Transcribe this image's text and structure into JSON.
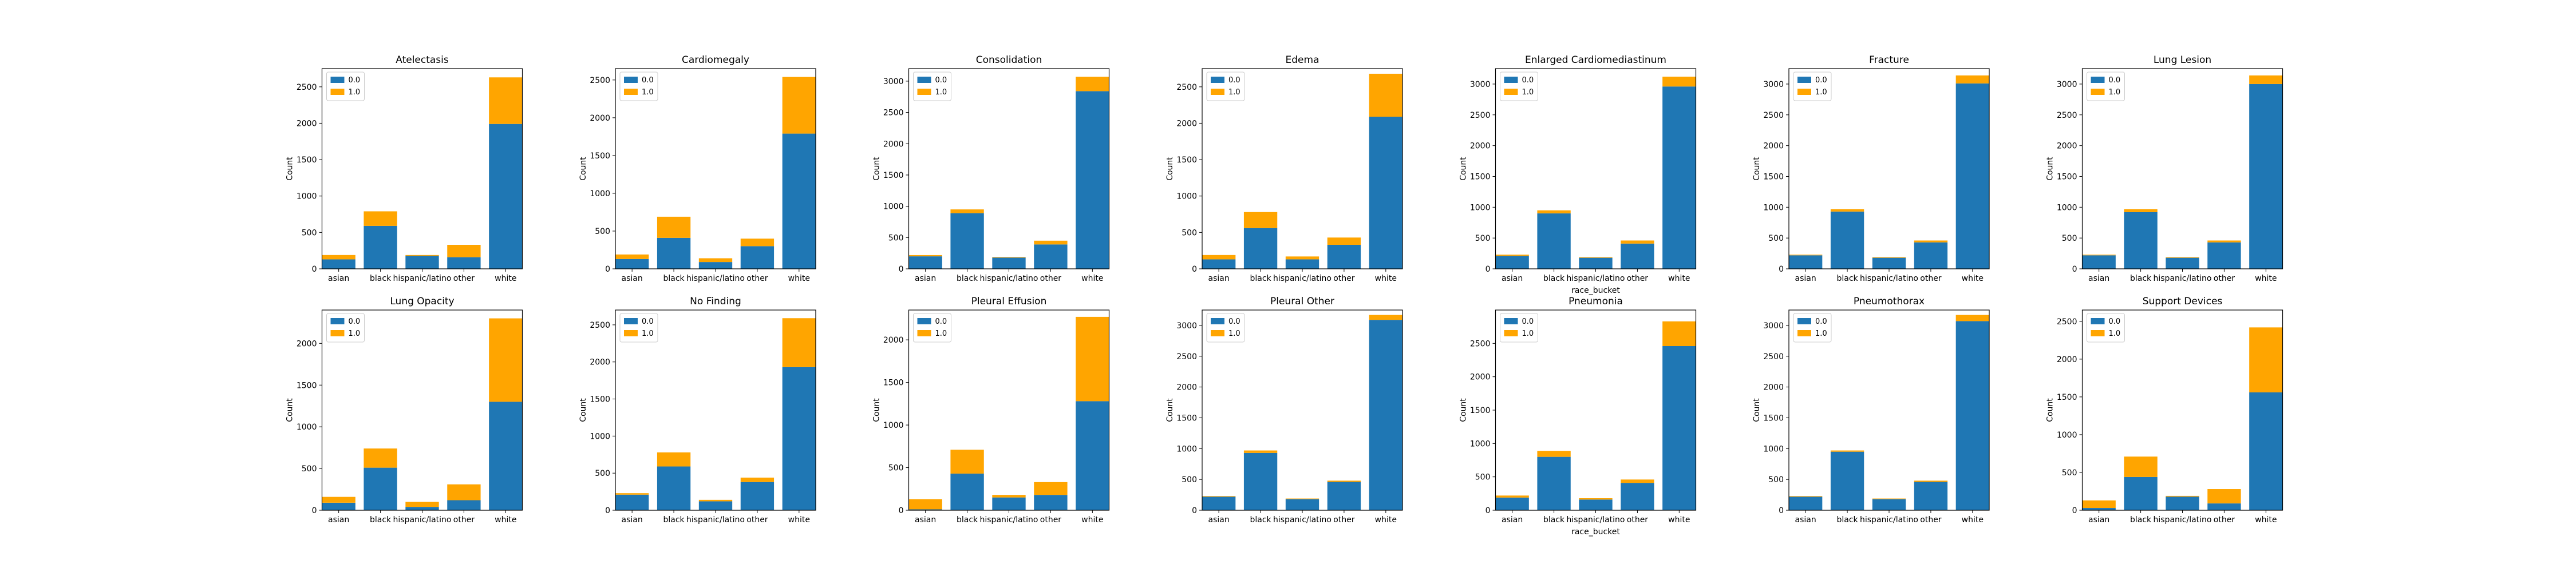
{
  "figure": {
    "colors": {
      "0.0": "#1f77b4",
      "1.0": "#ffa500"
    }
  },
  "chart_data": [
    {
      "type": "bar",
      "stacked": true,
      "title": "Atelectasis",
      "xlabel": "",
      "ylabel": "Count",
      "ylim": [
        0,
        2750
      ],
      "yticks": [
        0,
        500,
        1000,
        1500,
        2000,
        2500
      ],
      "categories": [
        "asian",
        "black",
        "hispanic/latino",
        "other",
        "white"
      ],
      "series": [
        {
          "name": "0.0",
          "values": [
            130,
            590,
            180,
            160,
            1990
          ]
        },
        {
          "name": "1.0",
          "values": [
            60,
            200,
            10,
            170,
            640
          ]
        }
      ],
      "legend": {
        "position": "top-left",
        "entries": [
          "0.0",
          "1.0"
        ]
      },
      "grid": false
    },
    {
      "type": "bar",
      "stacked": true,
      "title": "Cardiomegaly",
      "xlabel": "",
      "ylabel": "Count",
      "ylim": [
        0,
        2650
      ],
      "yticks": [
        0,
        500,
        1000,
        1500,
        2000,
        2500
      ],
      "categories": [
        "asian",
        "black",
        "hispanic/latino",
        "other",
        "white"
      ],
      "series": [
        {
          "name": "0.0",
          "values": [
            130,
            410,
            90,
            300,
            1790
          ]
        },
        {
          "name": "1.0",
          "values": [
            60,
            280,
            50,
            100,
            750
          ]
        }
      ],
      "legend": {
        "position": "top-left",
        "entries": [
          "0.0",
          "1.0"
        ]
      },
      "grid": false
    },
    {
      "type": "bar",
      "stacked": true,
      "title": "Consolidation",
      "xlabel": "",
      "ylabel": "Count",
      "ylim": [
        0,
        3200
      ],
      "yticks": [
        0,
        500,
        1000,
        1500,
        2000,
        2500,
        3000
      ],
      "categories": [
        "asian",
        "black",
        "hispanic/latino",
        "other",
        "white"
      ],
      "series": [
        {
          "name": "0.0",
          "values": [
            200,
            890,
            180,
            390,
            2840
          ]
        },
        {
          "name": "1.0",
          "values": [
            20,
            60,
            10,
            60,
            230
          ]
        }
      ],
      "legend": {
        "position": "top-left",
        "entries": [
          "0.0",
          "1.0"
        ]
      },
      "grid": false
    },
    {
      "type": "bar",
      "stacked": true,
      "title": "Edema",
      "xlabel": "",
      "ylabel": "Count",
      "ylim": [
        0,
        2750
      ],
      "yticks": [
        0,
        500,
        1000,
        1500,
        2000,
        2500
      ],
      "categories": [
        "asian",
        "black",
        "hispanic/latino",
        "other",
        "white"
      ],
      "series": [
        {
          "name": "0.0",
          "values": [
            130,
            560,
            130,
            330,
            2090
          ]
        },
        {
          "name": "1.0",
          "values": [
            60,
            220,
            40,
            100,
            590
          ]
        }
      ],
      "legend": {
        "position": "top-left",
        "entries": [
          "0.0",
          "1.0"
        ]
      },
      "grid": false
    },
    {
      "type": "bar",
      "stacked": true,
      "title": "Enlarged Cardiomediastinum",
      "xlabel": "race_bucket",
      "ylabel": "Count",
      "ylim": [
        0,
        3250
      ],
      "yticks": [
        0,
        500,
        1000,
        1500,
        2000,
        2500,
        3000
      ],
      "categories": [
        "asian",
        "black",
        "hispanic/latino",
        "other",
        "white"
      ],
      "series": [
        {
          "name": "0.0",
          "values": [
            210,
            900,
            180,
            410,
            2960
          ]
        },
        {
          "name": "1.0",
          "values": [
            20,
            50,
            10,
            50,
            160
          ]
        }
      ],
      "legend": {
        "position": "top-left",
        "entries": [
          "0.0",
          "1.0"
        ]
      },
      "grid": false
    },
    {
      "type": "bar",
      "stacked": true,
      "title": "Fracture",
      "xlabel": "",
      "ylabel": "Count",
      "ylim": [
        0,
        3250
      ],
      "yticks": [
        0,
        500,
        1000,
        1500,
        2000,
        2500,
        3000
      ],
      "categories": [
        "asian",
        "black",
        "hispanic/latino",
        "other",
        "white"
      ],
      "series": [
        {
          "name": "0.0",
          "values": [
            220,
            930,
            180,
            430,
            3010
          ]
        },
        {
          "name": "1.0",
          "values": [
            10,
            40,
            10,
            30,
            130
          ]
        }
      ],
      "legend": {
        "position": "top-left",
        "entries": [
          "0.0",
          "1.0"
        ]
      },
      "grid": false
    },
    {
      "type": "bar",
      "stacked": true,
      "title": "Lung Lesion",
      "xlabel": "",
      "ylabel": "Count",
      "ylim": [
        0,
        3250
      ],
      "yticks": [
        0,
        500,
        1000,
        1500,
        2000,
        2500,
        3000
      ],
      "categories": [
        "asian",
        "black",
        "hispanic/latino",
        "other",
        "white"
      ],
      "series": [
        {
          "name": "0.0",
          "values": [
            220,
            920,
            180,
            430,
            3000
          ]
        },
        {
          "name": "1.0",
          "values": [
            10,
            50,
            10,
            30,
            140
          ]
        }
      ],
      "legend": {
        "position": "top-left",
        "entries": [
          "0.0",
          "1.0"
        ]
      },
      "grid": false
    },
    {
      "type": "bar",
      "stacked": true,
      "title": "Lung Opacity",
      "xlabel": "",
      "ylabel": "Count",
      "ylim": [
        0,
        2400
      ],
      "yticks": [
        0,
        500,
        1000,
        1500,
        2000
      ],
      "categories": [
        "asian",
        "black",
        "hispanic/latino",
        "other",
        "white"
      ],
      "series": [
        {
          "name": "0.0",
          "values": [
            90,
            510,
            40,
            120,
            1300
          ]
        },
        {
          "name": "1.0",
          "values": [
            70,
            230,
            60,
            190,
            1000
          ]
        }
      ],
      "legend": {
        "position": "top-left",
        "entries": [
          "0.0",
          "1.0"
        ]
      },
      "grid": false
    },
    {
      "type": "bar",
      "stacked": true,
      "title": "No Finding",
      "xlabel": "",
      "ylabel": "Count",
      "ylim": [
        0,
        2700
      ],
      "yticks": [
        0,
        500,
        1000,
        1500,
        2000,
        2500
      ],
      "categories": [
        "asian",
        "black",
        "hispanic/latino",
        "other",
        "white"
      ],
      "series": [
        {
          "name": "0.0",
          "values": [
            210,
            590,
            120,
            380,
            1930
          ]
        },
        {
          "name": "1.0",
          "values": [
            20,
            190,
            20,
            60,
            660
          ]
        }
      ],
      "legend": {
        "position": "top-left",
        "entries": [
          "0.0",
          "1.0"
        ]
      },
      "grid": false
    },
    {
      "type": "bar",
      "stacked": true,
      "title": "Pleural Effusion",
      "xlabel": "",
      "ylabel": "Count",
      "ylim": [
        0,
        2350
      ],
      "yticks": [
        0,
        500,
        1000,
        1500,
        2000
      ],
      "categories": [
        "asian",
        "black",
        "hispanic/latino",
        "other",
        "white"
      ],
      "series": [
        {
          "name": "0.0",
          "values": [
            10,
            430,
            150,
            180,
            1280
          ]
        },
        {
          "name": "1.0",
          "values": [
            120,
            280,
            30,
            150,
            990
          ]
        }
      ],
      "legend": {
        "position": "top-left",
        "entries": [
          "0.0",
          "1.0"
        ]
      },
      "grid": false
    },
    {
      "type": "bar",
      "stacked": true,
      "title": "Pleural Other",
      "xlabel": "",
      "ylabel": "Count",
      "ylim": [
        0,
        3250
      ],
      "yticks": [
        0,
        500,
        1000,
        1500,
        2000,
        2500,
        3000
      ],
      "categories": [
        "asian",
        "black",
        "hispanic/latino",
        "other",
        "white"
      ],
      "series": [
        {
          "name": "0.0",
          "values": [
            220,
            930,
            180,
            460,
            3090
          ]
        },
        {
          "name": "1.0",
          "values": [
            10,
            40,
            10,
            20,
            80
          ]
        }
      ],
      "legend": {
        "position": "top-left",
        "entries": [
          "0.0",
          "1.0"
        ]
      },
      "grid": false
    },
    {
      "type": "bar",
      "stacked": true,
      "title": "Pneumonia",
      "xlabel": "race_bucket",
      "ylabel": "Count",
      "ylim": [
        0,
        3000
      ],
      "yticks": [
        0,
        500,
        1000,
        1500,
        2000,
        2500
      ],
      "categories": [
        "asian",
        "black",
        "hispanic/latino",
        "other",
        "white"
      ],
      "series": [
        {
          "name": "0.0",
          "values": [
            190,
            800,
            160,
            410,
            2460
          ]
        },
        {
          "name": "1.0",
          "values": [
            30,
            90,
            20,
            50,
            370
          ]
        }
      ],
      "legend": {
        "position": "top-left",
        "entries": [
          "0.0",
          "1.0"
        ]
      },
      "grid": false
    },
    {
      "type": "bar",
      "stacked": true,
      "title": "Pneumothorax",
      "xlabel": "",
      "ylabel": "Count",
      "ylim": [
        0,
        3250
      ],
      "yticks": [
        0,
        500,
        1000,
        1500,
        2000,
        2500,
        3000
      ],
      "categories": [
        "asian",
        "black",
        "hispanic/latino",
        "other",
        "white"
      ],
      "series": [
        {
          "name": "0.0",
          "values": [
            220,
            950,
            180,
            460,
            3070
          ]
        },
        {
          "name": "1.0",
          "values": [
            10,
            20,
            10,
            20,
            100
          ]
        }
      ],
      "legend": {
        "position": "top-left",
        "entries": [
          "0.0",
          "1.0"
        ]
      },
      "grid": false
    },
    {
      "type": "bar",
      "stacked": true,
      "title": "Support Devices",
      "xlabel": "",
      "ylabel": "Count",
      "ylim": [
        0,
        2650
      ],
      "yticks": [
        0,
        500,
        1000,
        1500,
        2000,
        2500
      ],
      "categories": [
        "asian",
        "black",
        "hispanic/latino",
        "other",
        "white"
      ],
      "series": [
        {
          "name": "0.0",
          "values": [
            30,
            440,
            180,
            90,
            1560
          ]
        },
        {
          "name": "1.0",
          "values": [
            100,
            270,
            10,
            190,
            860
          ]
        }
      ],
      "legend": {
        "position": "top-left",
        "entries": [
          "0.0",
          "1.0"
        ]
      },
      "grid": false
    }
  ]
}
